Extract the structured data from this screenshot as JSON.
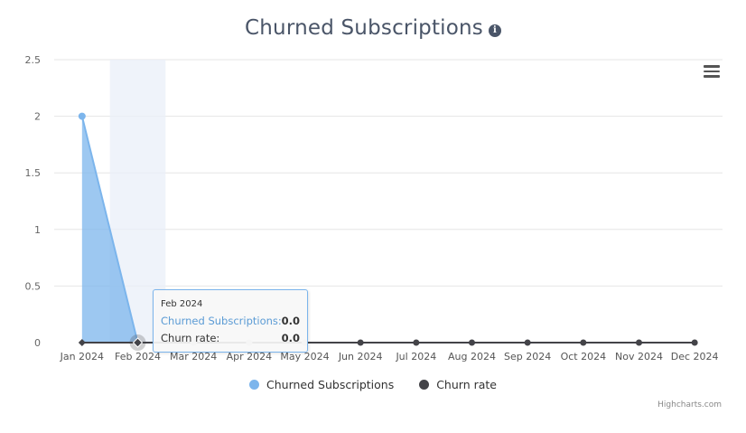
{
  "chart_data": {
    "type": "area",
    "title": "Churned Subscriptions",
    "categories": [
      "Jan 2024",
      "Feb 2024",
      "Mar 2024",
      "Apr 2024",
      "May 2024",
      "Jun 2024",
      "Jul 2024",
      "Aug 2024",
      "Sep 2024",
      "Oct 2024",
      "Nov 2024",
      "Dec 2024"
    ],
    "ylim": [
      0,
      2.5
    ],
    "yticks": [
      "0",
      "0.5",
      "1",
      "1.5",
      "2",
      "2.5"
    ],
    "grid": true,
    "legend_position": "bottom-center",
    "series": [
      {
        "name": "Churned Subscriptions",
        "type": "area",
        "color": "#7cb5ec",
        "values": [
          2,
          0,
          0,
          0,
          0,
          0,
          0,
          0,
          0,
          0,
          0,
          0
        ]
      },
      {
        "name": "Churn rate",
        "type": "line",
        "color": "#434348",
        "values": [
          0,
          0,
          0,
          0,
          0,
          0,
          0,
          0,
          0,
          0,
          0,
          0
        ]
      }
    ],
    "highlighted_category": "Feb 2024"
  },
  "tooltip": {
    "header": "Feb 2024",
    "rows": [
      {
        "label": "Churned Subscriptions:",
        "value": "0.0"
      },
      {
        "label": "Churn rate:",
        "value": "0.0"
      }
    ]
  },
  "legend": [
    {
      "label": "Churned Subscriptions",
      "color": "#7cb5ec"
    },
    {
      "label": "Churn rate",
      "color": "#434348"
    }
  ],
  "menu_icon": "hamburger-menu-icon",
  "info_icon": "info-icon",
  "credit": "Highcharts.com"
}
